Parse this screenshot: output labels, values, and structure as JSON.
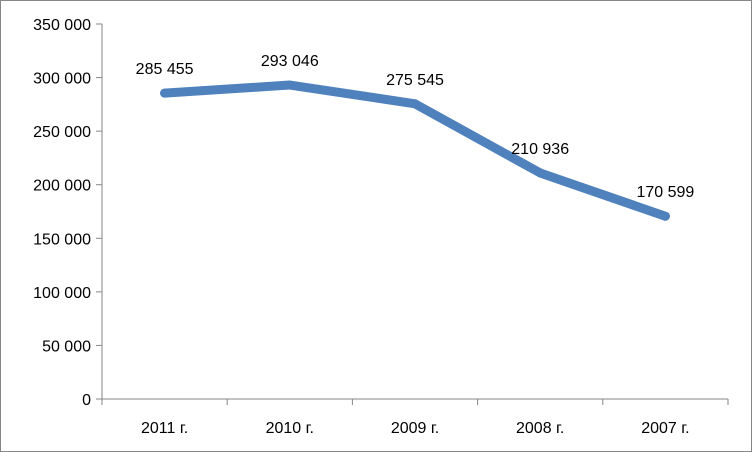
{
  "chart_data": {
    "type": "line",
    "categories": [
      "2011 г.",
      "2010 г.",
      "2009 г.",
      "2008 г.",
      "2007 г."
    ],
    "series": [
      {
        "values": [
          285455,
          293046,
          275545,
          210936,
          170599
        ],
        "data_labels": [
          "285 455",
          "293 046",
          "275 545",
          "210 936",
          "170 599"
        ],
        "color": "#4f81bd"
      }
    ],
    "y_ticks": [
      0,
      50000,
      100000,
      150000,
      200000,
      250000,
      300000,
      350000
    ],
    "y_tick_labels": [
      "0",
      "50 000",
      "100 000",
      "150 000",
      "200 000",
      "250 000",
      "300 000",
      "350 000"
    ],
    "ylim": [
      0,
      350000
    ],
    "grid": false,
    "legend": "none",
    "axis_color": "#868686"
  }
}
